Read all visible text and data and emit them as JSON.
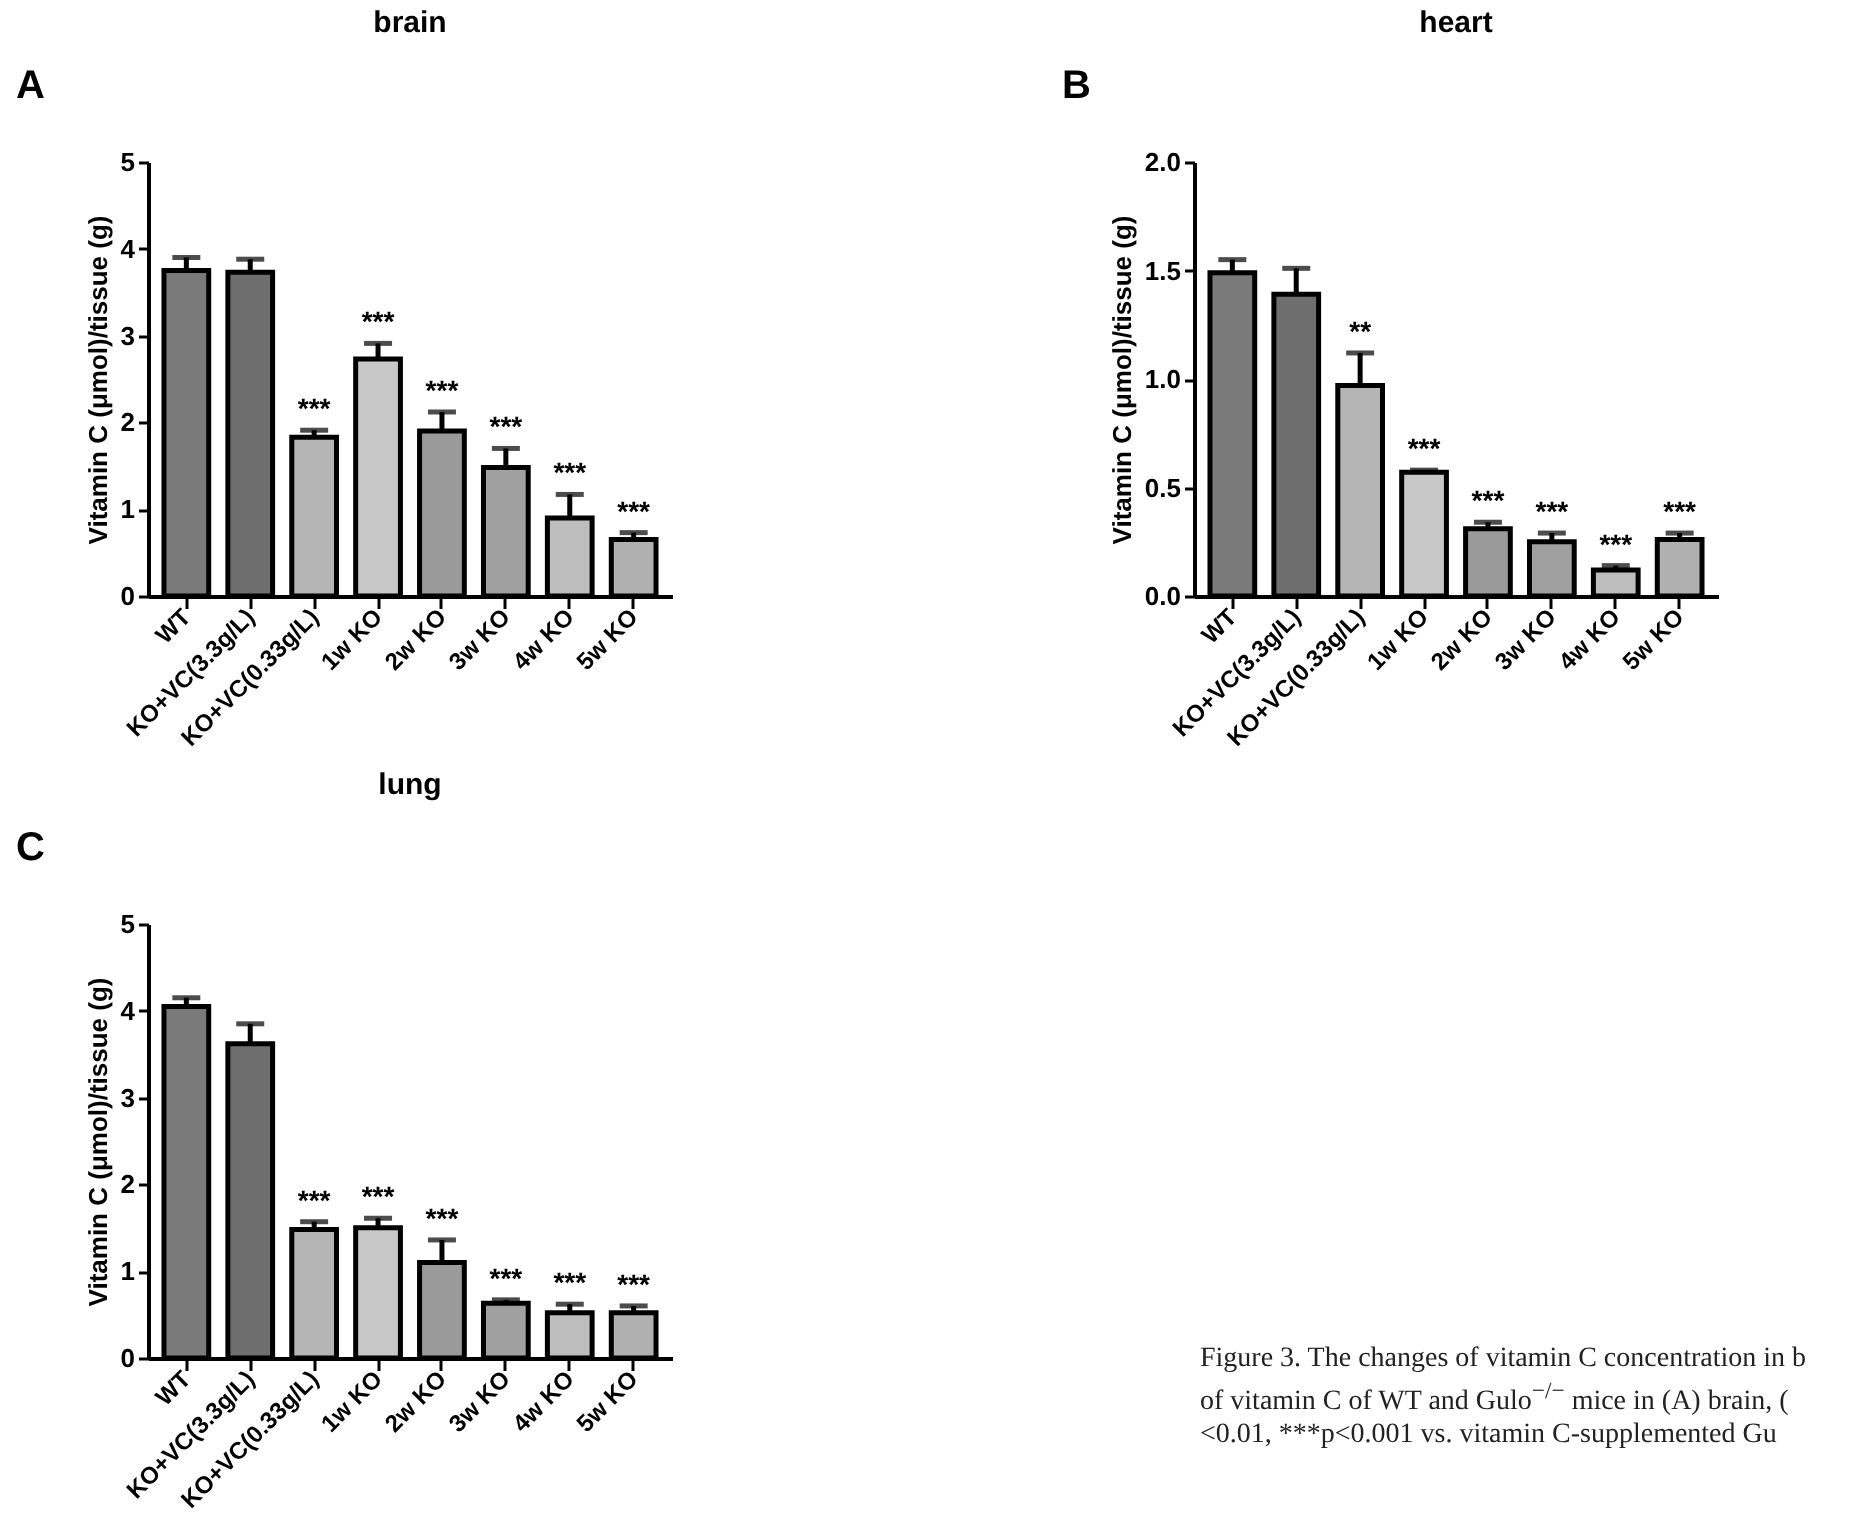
{
  "chart_data": [
    {
      "type": "bar",
      "title": "brain",
      "ylabel": "Vitamin C (μmol)/tissue (g)",
      "categories": [
        "WT",
        "KO+VC(3.3g/L)",
        "KO+VC(0.33g/L)",
        "1w KO",
        "2w KO",
        "3w KO",
        "4w KO",
        "5w KO"
      ],
      "values": [
        3.75,
        3.73,
        1.83,
        2.73,
        1.9,
        1.48,
        0.9,
        0.65
      ],
      "errors": [
        0.15,
        0.15,
        0.08,
        0.18,
        0.22,
        0.22,
        0.27,
        0.08
      ],
      "value_labels": [
        null,
        null,
        "***",
        "***",
        "***",
        "***",
        "***",
        "***"
      ],
      "colors": [
        "#7a7a7a",
        "#6e6e6e",
        "#b5b5b5",
        "#c8c8c8",
        "#9a9a9a",
        "#a0a0a0",
        "#bdbdbd",
        "#b0b0b0"
      ],
      "ylim": [
        0,
        5
      ],
      "yticks": [
        0,
        1,
        2,
        3,
        4,
        5
      ],
      "annotations": [
        "A"
      ]
    },
    {
      "type": "bar",
      "title": "heart",
      "ylabel": "Vitamin C (μmol)/tissue (g)",
      "categories": [
        "WT",
        "KO+VC(3.3g/L)",
        "KO+VC(0.33g/L)",
        "1w KO",
        "2w KO",
        "3w KO",
        "4w KO",
        "5w KO"
      ],
      "values": [
        1.49,
        1.39,
        0.97,
        0.57,
        0.31,
        0.25,
        0.12,
        0.26
      ],
      "errors": [
        0.06,
        0.12,
        0.15,
        0.01,
        0.03,
        0.04,
        0.02,
        0.03
      ],
      "value_labels": [
        null,
        null,
        "**",
        "***",
        "***",
        "***",
        "***",
        "***"
      ],
      "colors": [
        "#7a7a7a",
        "#6e6e6e",
        "#b5b5b5",
        "#c8c8c8",
        "#9a9a9a",
        "#a0a0a0",
        "#bdbdbd",
        "#b0b0b0"
      ],
      "ylim": [
        0,
        2
      ],
      "yticks": [
        {
          "value": 0,
          "label": "0.0"
        },
        {
          "value": 0.5,
          "label": "0.5"
        },
        {
          "value": 1,
          "label": "1.0"
        },
        {
          "value": 1.5,
          "label": "1.5"
        },
        {
          "value": 2,
          "label": "2.0"
        }
      ],
      "annotations": [
        "B"
      ]
    },
    {
      "type": "bar",
      "title": "lung",
      "ylabel": "Vitamin C (μmol)/tissue (g)",
      "categories": [
        "WT",
        "KO+VC(3.3g/L)",
        "KO+VC(0.33g/L)",
        "1w KO",
        "2w KO",
        "3w KO",
        "4w KO",
        "5w KO"
      ],
      "values": [
        4.05,
        3.62,
        1.48,
        1.5,
        1.1,
        0.63,
        0.52,
        0.52
      ],
      "errors": [
        0.1,
        0.23,
        0.09,
        0.11,
        0.26,
        0.04,
        0.1,
        0.08
      ],
      "value_labels": [
        null,
        null,
        "***",
        "***",
        "***",
        "***",
        "***",
        "***"
      ],
      "colors": [
        "#7a7a7a",
        "#6e6e6e",
        "#b5b5b5",
        "#c8c8c8",
        "#9a9a9a",
        "#a0a0a0",
        "#bdbdbd",
        "#b0b0b0"
      ],
      "ylim": [
        0,
        5
      ],
      "yticks": [
        0,
        1,
        2,
        3,
        4,
        5
      ],
      "annotations": [
        "C",
        "Figure 3. The changes of vitamin C concentration in b\nof vitamin C of WT and Gulo$^{−/−}$ mice in (A) brain, (\n<0.01, ***p<0.001 vs. vitamin C-supplemented Gu"
      ]
    }
  ]
}
